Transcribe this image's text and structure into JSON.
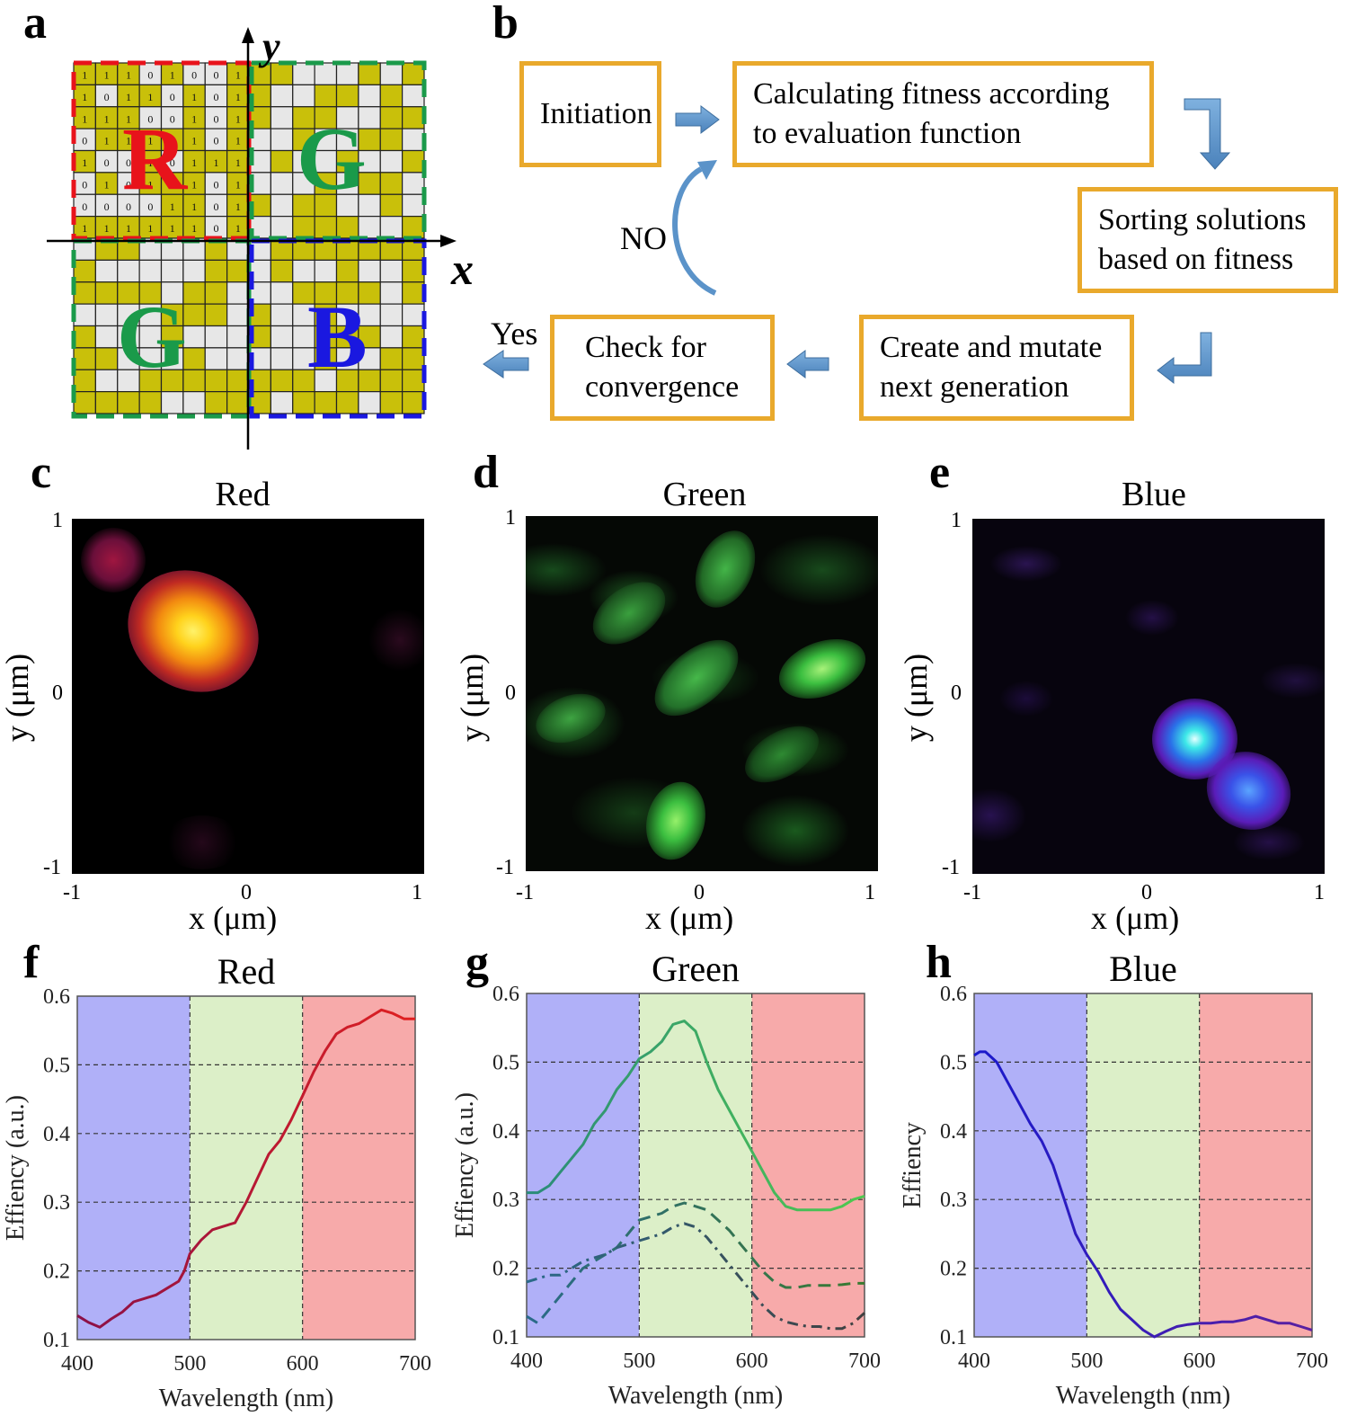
{
  "panels": {
    "a": "a",
    "b": "b",
    "c": "c",
    "d": "d",
    "e": "e",
    "f": "f",
    "g": "g",
    "h": "h"
  },
  "panel_a": {
    "quadrant_letters": [
      "R",
      "G",
      "G",
      "B"
    ],
    "axis_x": "x",
    "axis_y": "y",
    "colors": {
      "red": "#e8131b",
      "green": "#1a9a4a",
      "blue": "#1a18e0",
      "cell_on": "#c9c00a",
      "cell_off": "#e7e7e7"
    },
    "binary_rows": [
      "1 1 1 0 1 0 0 1",
      "1 0 1 1 0 1 0 1",
      "1 1 1 0 0 1 0 1",
      "0 1 1 1 1 1 0 1",
      "1 0 0 1 0 1 1 1",
      "0 1 0 1 1 1 0 1",
      "0 0 0 0 1 1 0 1",
      "1 1 1 1 1 1 0 1"
    ]
  },
  "panel_b": {
    "box_initiation": "Initiation",
    "box_fitness": "Calculating fitness according\nto  evaluation function",
    "box_sorting": "Sorting solutions\nbased on fitness",
    "box_create": "Create  and mutate\nnext generation",
    "box_check": "Check for\nconvergence",
    "label_no": "NO",
    "label_yes": "Yes",
    "colors": {
      "box_border": "#e9a92c",
      "arrow": "#5b93c9"
    }
  },
  "maps": [
    {
      "title": "Red",
      "xlabel": "x (μm)",
      "ylabel": "y (μm)",
      "xticks": [
        "-1",
        "0",
        "1"
      ],
      "yticks": [
        "1",
        "0",
        "-1"
      ]
    },
    {
      "title": "Green",
      "xlabel": "x (μm)",
      "ylabel": "y (μm)",
      "xticks": [
        "-1",
        "0",
        "1"
      ],
      "yticks": [
        "1",
        "0",
        "-1"
      ]
    },
    {
      "title": "Blue",
      "xlabel": "x (μm)",
      "ylabel": "y (μm)",
      "xticks": [
        "-1",
        "0",
        "1"
      ],
      "yticks": [
        "1",
        "0",
        "-1"
      ]
    }
  ],
  "chart_data": [
    {
      "type": "line",
      "title": "Red",
      "xlabel": "Wavelength (nm)",
      "ylabel": "Effiency (a.u.)",
      "xlim": [
        400,
        700
      ],
      "ylim": [
        0.1,
        0.6
      ],
      "xticks": [
        400,
        500,
        600,
        700
      ],
      "yticks": [
        0.1,
        0.2,
        0.3,
        0.4,
        0.5,
        0.6
      ],
      "grid": "horizontal dashed",
      "bands": [
        {
          "from": 400,
          "to": 500,
          "color": "#b0b0f8"
        },
        {
          "from": 500,
          "to": 600,
          "color": "#dcefc8"
        },
        {
          "from": 600,
          "to": 700,
          "color": "#f7aaaa"
        }
      ],
      "series": [
        {
          "style": "solid",
          "color_from": "#8a1048",
          "color_to": "#e02020",
          "x": [
            400,
            410,
            420,
            430,
            440,
            450,
            460,
            470,
            480,
            490,
            495,
            500,
            510,
            520,
            530,
            540,
            550,
            560,
            570,
            580,
            590,
            600,
            610,
            620,
            630,
            640,
            650,
            660,
            670,
            680,
            690,
            700
          ],
          "y": [
            0.135,
            0.125,
            0.118,
            0.13,
            0.14,
            0.155,
            0.16,
            0.165,
            0.175,
            0.185,
            0.2,
            0.225,
            0.245,
            0.26,
            0.265,
            0.27,
            0.3,
            0.335,
            0.37,
            0.39,
            0.42,
            0.455,
            0.49,
            0.52,
            0.545,
            0.555,
            0.56,
            0.57,
            0.58,
            0.575,
            0.567,
            0.567
          ]
        }
      ]
    },
    {
      "type": "line",
      "title": "Green",
      "xlabel": "Wavelength (nm)",
      "ylabel": "Effiency (a.u.)",
      "xlim": [
        400,
        700
      ],
      "ylim": [
        0.1,
        0.6
      ],
      "xticks": [
        400,
        500,
        600,
        700
      ],
      "yticks": [
        0.1,
        0.2,
        0.3,
        0.4,
        0.5,
        0.6
      ],
      "grid": "horizontal dashed",
      "bands": [
        {
          "from": 400,
          "to": 500,
          "color": "#b0b0f8"
        },
        {
          "from": 500,
          "to": 600,
          "color": "#dcefc8"
        },
        {
          "from": 600,
          "to": 700,
          "color": "#f7aaaa"
        }
      ],
      "series": [
        {
          "style": "solid",
          "color_from": "#2a8a7a",
          "color_to": "#4fc94f",
          "x": [
            400,
            410,
            420,
            430,
            440,
            450,
            460,
            470,
            480,
            490,
            500,
            510,
            520,
            530,
            540,
            550,
            560,
            570,
            580,
            590,
            600,
            610,
            620,
            630,
            640,
            650,
            660,
            670,
            680,
            690,
            700
          ],
          "y": [
            0.31,
            0.31,
            0.32,
            0.34,
            0.36,
            0.38,
            0.41,
            0.43,
            0.46,
            0.48,
            0.505,
            0.515,
            0.53,
            0.555,
            0.56,
            0.545,
            0.5,
            0.46,
            0.43,
            0.4,
            0.37,
            0.34,
            0.31,
            0.29,
            0.285,
            0.285,
            0.285,
            0.285,
            0.29,
            0.3,
            0.305
          ]
        },
        {
          "style": "dashed",
          "color_from": "#2a6a8a",
          "color_to": "#3a7a30",
          "x": [
            400,
            410,
            420,
            430,
            440,
            450,
            460,
            470,
            480,
            490,
            500,
            510,
            520,
            530,
            540,
            550,
            560,
            570,
            580,
            590,
            600,
            610,
            620,
            630,
            640,
            650,
            660,
            670,
            680,
            690,
            700
          ],
          "y": [
            0.13,
            0.12,
            0.14,
            0.16,
            0.18,
            0.2,
            0.21,
            0.22,
            0.23,
            0.25,
            0.27,
            0.275,
            0.28,
            0.29,
            0.295,
            0.29,
            0.285,
            0.27,
            0.255,
            0.235,
            0.215,
            0.195,
            0.18,
            0.172,
            0.172,
            0.175,
            0.175,
            0.175,
            0.176,
            0.178,
            0.178
          ]
        },
        {
          "style": "dashdot",
          "color_from": "#2a6a8a",
          "color_to": "#404040",
          "x": [
            400,
            410,
            420,
            430,
            440,
            450,
            460,
            470,
            480,
            490,
            500,
            510,
            520,
            530,
            540,
            550,
            560,
            570,
            580,
            590,
            600,
            610,
            620,
            630,
            640,
            650,
            660,
            670,
            680,
            690,
            700
          ],
          "y": [
            0.18,
            0.185,
            0.19,
            0.19,
            0.2,
            0.21,
            0.215,
            0.22,
            0.23,
            0.235,
            0.24,
            0.245,
            0.25,
            0.26,
            0.265,
            0.26,
            0.245,
            0.225,
            0.205,
            0.185,
            0.165,
            0.145,
            0.13,
            0.122,
            0.118,
            0.115,
            0.115,
            0.112,
            0.112,
            0.12,
            0.135
          ]
        }
      ]
    },
    {
      "type": "line",
      "title": "Blue",
      "xlabel": "Wavelength (nm)",
      "ylabel": "Effiency",
      "xlim": [
        400,
        700
      ],
      "ylim": [
        0.1,
        0.6
      ],
      "xticks": [
        400,
        500,
        600,
        700
      ],
      "yticks": [
        0.1,
        0.2,
        0.3,
        0.4,
        0.5,
        0.6
      ],
      "grid": "horizontal dashed",
      "bands": [
        {
          "from": 400,
          "to": 500,
          "color": "#b0b0f8"
        },
        {
          "from": 500,
          "to": 600,
          "color": "#dcefc8"
        },
        {
          "from": 600,
          "to": 700,
          "color": "#f7aaaa"
        }
      ],
      "series": [
        {
          "style": "solid",
          "color_from": "#1a1acc",
          "color_to": "#5a20a0",
          "x": [
            400,
            405,
            410,
            420,
            430,
            440,
            450,
            460,
            470,
            480,
            490,
            500,
            510,
            520,
            530,
            540,
            550,
            560,
            570,
            580,
            590,
            600,
            610,
            620,
            630,
            640,
            650,
            660,
            670,
            680,
            690,
            700
          ],
          "y": [
            0.51,
            0.515,
            0.515,
            0.5,
            0.47,
            0.44,
            0.41,
            0.385,
            0.35,
            0.3,
            0.25,
            0.22,
            0.195,
            0.165,
            0.14,
            0.125,
            0.11,
            0.1,
            0.108,
            0.115,
            0.118,
            0.12,
            0.12,
            0.122,
            0.122,
            0.125,
            0.13,
            0.125,
            0.12,
            0.12,
            0.115,
            0.11
          ]
        }
      ]
    }
  ]
}
